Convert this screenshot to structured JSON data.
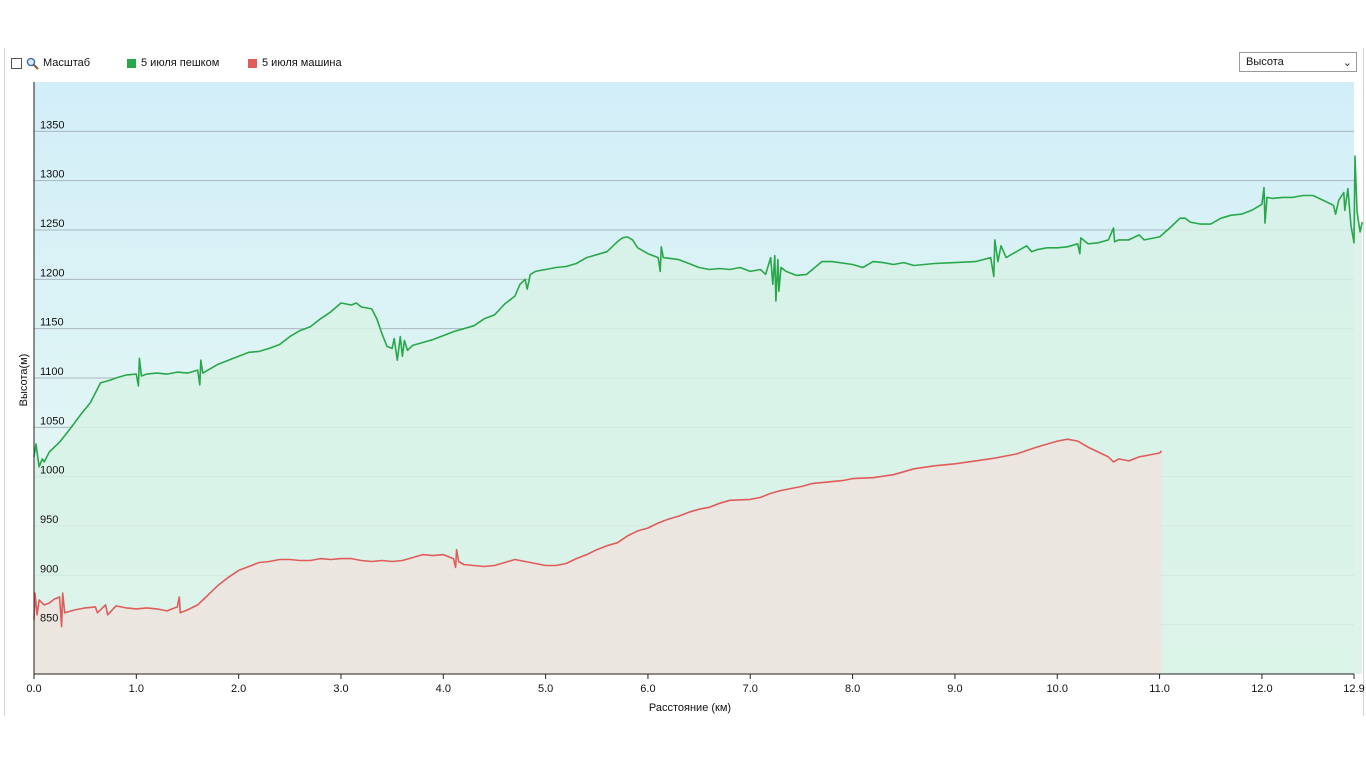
{
  "toolbar": {
    "zoom_label": "Масштаб",
    "zoom_checked": false,
    "select_value": "Высота",
    "zoom_icon": "magnifier-icon",
    "select_icon": "chevron-down-icon"
  },
  "chart_data": {
    "type": "area",
    "xlabel": "Расстояние  (км)",
    "ylabel": "Высота(м)",
    "xlim": [
      0,
      12.9
    ],
    "ylim": [
      800,
      1400
    ],
    "x_ticks": [
      "0.0",
      "1.0",
      "2.0",
      "3.0",
      "4.0",
      "5.0",
      "6.0",
      "7.0",
      "8.0",
      "9.0",
      "10.0",
      "11.0",
      "12.0",
      "12.9"
    ],
    "y_ticks": [
      "850",
      "900",
      "950",
      "1000",
      "1050",
      "1100",
      "1150",
      "1200",
      "1250",
      "1300",
      "1350"
    ],
    "grid": true,
    "legend_position": "top-left",
    "background_gradient": [
      "#d2eef8",
      "#eafaf2"
    ],
    "series": [
      {
        "name": "5 июля пешком",
        "color": "#28a84a",
        "fill": "#d8f2e6",
        "points": [
          [
            0.0,
            1020
          ],
          [
            0.02,
            1033
          ],
          [
            0.05,
            1010
          ],
          [
            0.08,
            1018
          ],
          [
            0.1,
            1015
          ],
          [
            0.15,
            1025
          ],
          [
            0.25,
            1035
          ],
          [
            0.35,
            1048
          ],
          [
            0.45,
            1062
          ],
          [
            0.55,
            1075
          ],
          [
            0.65,
            1095
          ],
          [
            0.75,
            1098
          ],
          [
            0.8,
            1100
          ],
          [
            0.9,
            1103
          ],
          [
            1.0,
            1104
          ],
          [
            1.02,
            1092
          ],
          [
            1.03,
            1120
          ],
          [
            1.05,
            1102
          ],
          [
            1.1,
            1104
          ],
          [
            1.2,
            1105
          ],
          [
            1.3,
            1104
          ],
          [
            1.4,
            1106
          ],
          [
            1.5,
            1105
          ],
          [
            1.6,
            1108
          ],
          [
            1.62,
            1093
          ],
          [
            1.63,
            1118
          ],
          [
            1.65,
            1105
          ],
          [
            1.7,
            1108
          ],
          [
            1.8,
            1114
          ],
          [
            1.9,
            1118
          ],
          [
            2.0,
            1122
          ],
          [
            2.1,
            1126
          ],
          [
            2.2,
            1127
          ],
          [
            2.3,
            1130
          ],
          [
            2.4,
            1134
          ],
          [
            2.5,
            1142
          ],
          [
            2.6,
            1148
          ],
          [
            2.7,
            1152
          ],
          [
            2.8,
            1160
          ],
          [
            2.9,
            1167
          ],
          [
            3.0,
            1176
          ],
          [
            3.1,
            1174
          ],
          [
            3.15,
            1176
          ],
          [
            3.2,
            1172
          ],
          [
            3.3,
            1170
          ],
          [
            3.35,
            1160
          ],
          [
            3.4,
            1145
          ],
          [
            3.45,
            1132
          ],
          [
            3.5,
            1130
          ],
          [
            3.52,
            1140
          ],
          [
            3.55,
            1118
          ],
          [
            3.58,
            1142
          ],
          [
            3.6,
            1122
          ],
          [
            3.62,
            1138
          ],
          [
            3.65,
            1128
          ],
          [
            3.7,
            1133
          ],
          [
            3.8,
            1136
          ],
          [
            3.9,
            1139
          ],
          [
            4.0,
            1143
          ],
          [
            4.1,
            1147
          ],
          [
            4.2,
            1150
          ],
          [
            4.3,
            1153
          ],
          [
            4.4,
            1160
          ],
          [
            4.5,
            1164
          ],
          [
            4.6,
            1175
          ],
          [
            4.7,
            1183
          ],
          [
            4.75,
            1195
          ],
          [
            4.8,
            1200
          ],
          [
            4.82,
            1190
          ],
          [
            4.85,
            1205
          ],
          [
            4.9,
            1208
          ],
          [
            5.0,
            1210
          ],
          [
            5.1,
            1212
          ],
          [
            5.2,
            1213
          ],
          [
            5.3,
            1216
          ],
          [
            5.4,
            1222
          ],
          [
            5.5,
            1225
          ],
          [
            5.6,
            1228
          ],
          [
            5.7,
            1238
          ],
          [
            5.75,
            1242
          ],
          [
            5.8,
            1243
          ],
          [
            5.85,
            1240
          ],
          [
            5.9,
            1232
          ],
          [
            6.0,
            1226
          ],
          [
            6.1,
            1222
          ],
          [
            6.12,
            1208
          ],
          [
            6.13,
            1233
          ],
          [
            6.15,
            1222
          ],
          [
            6.3,
            1220
          ],
          [
            6.4,
            1216
          ],
          [
            6.5,
            1212
          ],
          [
            6.6,
            1210
          ],
          [
            6.7,
            1211
          ],
          [
            6.8,
            1210
          ],
          [
            6.9,
            1212
          ],
          [
            7.0,
            1208
          ],
          [
            7.1,
            1210
          ],
          [
            7.15,
            1205
          ],
          [
            7.2,
            1222
          ],
          [
            7.22,
            1195
          ],
          [
            7.24,
            1224
          ],
          [
            7.25,
            1178
          ],
          [
            7.27,
            1220
          ],
          [
            7.28,
            1188
          ],
          [
            7.3,
            1212
          ],
          [
            7.35,
            1208
          ],
          [
            7.45,
            1204
          ],
          [
            7.55,
            1205
          ],
          [
            7.7,
            1218
          ],
          [
            7.8,
            1218
          ],
          [
            8.0,
            1215
          ],
          [
            8.1,
            1212
          ],
          [
            8.2,
            1218
          ],
          [
            8.3,
            1217
          ],
          [
            8.4,
            1215
          ],
          [
            8.5,
            1217
          ],
          [
            8.6,
            1214
          ],
          [
            8.7,
            1215
          ],
          [
            8.8,
            1216
          ],
          [
            9.0,
            1217
          ],
          [
            9.2,
            1218
          ],
          [
            9.35,
            1222
          ],
          [
            9.38,
            1203
          ],
          [
            9.39,
            1240
          ],
          [
            9.42,
            1218
          ],
          [
            9.45,
            1234
          ],
          [
            9.5,
            1222
          ],
          [
            9.6,
            1228
          ],
          [
            9.7,
            1234
          ],
          [
            9.75,
            1228
          ],
          [
            9.8,
            1230
          ],
          [
            9.9,
            1232
          ],
          [
            10.0,
            1232
          ],
          [
            10.1,
            1233
          ],
          [
            10.2,
            1236
          ],
          [
            10.22,
            1226
          ],
          [
            10.23,
            1242
          ],
          [
            10.3,
            1236
          ],
          [
            10.4,
            1237
          ],
          [
            10.5,
            1240
          ],
          [
            10.55,
            1252
          ],
          [
            10.56,
            1238
          ],
          [
            10.6,
            1240
          ],
          [
            10.7,
            1240
          ],
          [
            10.8,
            1245
          ],
          [
            10.85,
            1240
          ],
          [
            11.0,
            1243
          ],
          [
            11.1,
            1252
          ],
          [
            11.2,
            1262
          ],
          [
            11.25,
            1262
          ],
          [
            11.3,
            1258
          ],
          [
            11.4,
            1256
          ],
          [
            11.5,
            1256
          ],
          [
            11.6,
            1262
          ],
          [
            11.7,
            1265
          ],
          [
            11.8,
            1266
          ],
          [
            11.9,
            1270
          ],
          [
            12.0,
            1276
          ],
          [
            12.02,
            1293
          ],
          [
            12.03,
            1257
          ],
          [
            12.05,
            1283
          ],
          [
            12.1,
            1282
          ],
          [
            12.2,
            1283
          ],
          [
            12.3,
            1283
          ],
          [
            12.4,
            1285
          ],
          [
            12.5,
            1285
          ],
          [
            12.6,
            1280
          ],
          [
            12.7,
            1275
          ],
          [
            12.72,
            1266
          ],
          [
            12.75,
            1280
          ],
          [
            12.8,
            1288
          ],
          [
            12.81,
            1270
          ],
          [
            12.84,
            1292
          ],
          [
            12.87,
            1255
          ],
          [
            12.9,
            1237
          ],
          [
            12.91,
            1325
          ],
          [
            12.93,
            1268
          ],
          [
            12.96,
            1248
          ],
          [
            12.98,
            1258
          ]
        ]
      },
      {
        "name": "5 июля машина",
        "color": "#e05c5c",
        "fill": "#efe3df",
        "points": [
          [
            0.0,
            855
          ],
          [
            0.01,
            882
          ],
          [
            0.03,
            860
          ],
          [
            0.05,
            875
          ],
          [
            0.1,
            870
          ],
          [
            0.15,
            872
          ],
          [
            0.2,
            876
          ],
          [
            0.25,
            878
          ],
          [
            0.27,
            848
          ],
          [
            0.28,
            882
          ],
          [
            0.3,
            862
          ],
          [
            0.4,
            865
          ],
          [
            0.5,
            867
          ],
          [
            0.6,
            868
          ],
          [
            0.62,
            862
          ],
          [
            0.7,
            870
          ],
          [
            0.72,
            860
          ],
          [
            0.8,
            869
          ],
          [
            0.9,
            867
          ],
          [
            1.0,
            866
          ],
          [
            1.1,
            867
          ],
          [
            1.2,
            866
          ],
          [
            1.3,
            864
          ],
          [
            1.35,
            866
          ],
          [
            1.4,
            868
          ],
          [
            1.42,
            878
          ],
          [
            1.43,
            862
          ],
          [
            1.5,
            865
          ],
          [
            1.6,
            870
          ],
          [
            1.65,
            875
          ],
          [
            1.7,
            880
          ],
          [
            1.8,
            890
          ],
          [
            1.9,
            898
          ],
          [
            2.0,
            905
          ],
          [
            2.1,
            909
          ],
          [
            2.2,
            913
          ],
          [
            2.3,
            914
          ],
          [
            2.4,
            916
          ],
          [
            2.5,
            916
          ],
          [
            2.6,
            915
          ],
          [
            2.7,
            915
          ],
          [
            2.8,
            917
          ],
          [
            2.9,
            916
          ],
          [
            3.0,
            917
          ],
          [
            3.1,
            917
          ],
          [
            3.2,
            915
          ],
          [
            3.3,
            914
          ],
          [
            3.4,
            915
          ],
          [
            3.5,
            914
          ],
          [
            3.6,
            915
          ],
          [
            3.7,
            918
          ],
          [
            3.8,
            921
          ],
          [
            3.9,
            920
          ],
          [
            4.0,
            921
          ],
          [
            4.1,
            917
          ],
          [
            4.12,
            908
          ],
          [
            4.13,
            926
          ],
          [
            4.15,
            914
          ],
          [
            4.2,
            911
          ],
          [
            4.3,
            910
          ],
          [
            4.4,
            909
          ],
          [
            4.5,
            910
          ],
          [
            4.6,
            913
          ],
          [
            4.7,
            916
          ],
          [
            4.8,
            914
          ],
          [
            4.9,
            912
          ],
          [
            5.0,
            910
          ],
          [
            5.1,
            910
          ],
          [
            5.2,
            912
          ],
          [
            5.3,
            917
          ],
          [
            5.4,
            921
          ],
          [
            5.5,
            926
          ],
          [
            5.6,
            930
          ],
          [
            5.7,
            933
          ],
          [
            5.8,
            940
          ],
          [
            5.9,
            945
          ],
          [
            6.0,
            948
          ],
          [
            6.1,
            953
          ],
          [
            6.2,
            957
          ],
          [
            6.3,
            960
          ],
          [
            6.4,
            964
          ],
          [
            6.5,
            967
          ],
          [
            6.6,
            969
          ],
          [
            6.7,
            973
          ],
          [
            6.8,
            976
          ],
          [
            7.0,
            977
          ],
          [
            7.1,
            979
          ],
          [
            7.2,
            983
          ],
          [
            7.3,
            986
          ],
          [
            7.4,
            988
          ],
          [
            7.5,
            990
          ],
          [
            7.6,
            993
          ],
          [
            7.7,
            994
          ],
          [
            7.8,
            995
          ],
          [
            7.9,
            996
          ],
          [
            8.0,
            998
          ],
          [
            8.2,
            999
          ],
          [
            8.4,
            1002
          ],
          [
            8.6,
            1008
          ],
          [
            8.8,
            1011
          ],
          [
            9.0,
            1013
          ],
          [
            9.2,
            1016
          ],
          [
            9.4,
            1019
          ],
          [
            9.6,
            1023
          ],
          [
            9.8,
            1030
          ],
          [
            10.0,
            1036
          ],
          [
            10.1,
            1038
          ],
          [
            10.2,
            1036
          ],
          [
            10.3,
            1030
          ],
          [
            10.4,
            1025
          ],
          [
            10.5,
            1020
          ],
          [
            10.55,
            1015
          ],
          [
            10.6,
            1018
          ],
          [
            10.7,
            1016
          ],
          [
            10.8,
            1020
          ],
          [
            10.9,
            1022
          ],
          [
            11.0,
            1024
          ],
          [
            11.02,
            1026
          ]
        ]
      }
    ]
  }
}
